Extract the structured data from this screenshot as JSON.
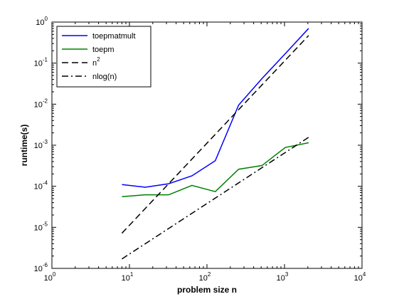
{
  "chart_data": {
    "type": "line",
    "xlabel": "problem size n",
    "ylabel": "runtime(s)",
    "xscale": "log",
    "yscale": "log",
    "xlim": [
      1,
      10000
    ],
    "ylim": [
      1e-06,
      1
    ],
    "grid": false,
    "legend_position": "top-left",
    "x_ticks": [
      {
        "value": 1,
        "base": "10",
        "exp": "0"
      },
      {
        "value": 10,
        "base": "10",
        "exp": "1"
      },
      {
        "value": 100,
        "base": "10",
        "exp": "2"
      },
      {
        "value": 1000,
        "base": "10",
        "exp": "3"
      },
      {
        "value": 10000,
        "base": "10",
        "exp": "4"
      }
    ],
    "y_ticks": [
      {
        "value": 1e-06,
        "base": "10",
        "exp": "-6"
      },
      {
        "value": 1e-05,
        "base": "10",
        "exp": "-5"
      },
      {
        "value": 0.0001,
        "base": "10",
        "exp": "-4"
      },
      {
        "value": 0.001,
        "base": "10",
        "exp": "-3"
      },
      {
        "value": 0.01,
        "base": "10",
        "exp": "-2"
      },
      {
        "value": 0.1,
        "base": "10",
        "exp": "-1"
      },
      {
        "value": 1,
        "base": "10",
        "exp": "0"
      }
    ],
    "series": [
      {
        "name": "toepmatmult",
        "color": "#0000ff",
        "style": "solid",
        "x": [
          8,
          16,
          32,
          64,
          128,
          256,
          512,
          1024,
          2048
        ],
        "y": [
          0.00011,
          9.5e-05,
          0.000115,
          0.00018,
          0.00042,
          0.0095,
          0.042,
          0.17,
          0.7
        ]
      },
      {
        "name": "toepm",
        "color": "#008000",
        "style": "solid",
        "x": [
          8,
          16,
          32,
          64,
          128,
          256,
          512,
          1024,
          2048
        ],
        "y": [
          5.6e-05,
          6.2e-05,
          6.2e-05,
          0.000105,
          7.4e-05,
          0.00026,
          0.00032,
          0.00088,
          0.00115
        ]
      },
      {
        "name": "n²",
        "legend_base": "n",
        "legend_sup": "2",
        "color": "#000000",
        "style": "dashed",
        "x": [
          8,
          2048
        ],
        "y": [
          7.2e-06,
          0.47
        ]
      },
      {
        "name": "nlog(n)",
        "color": "#000000",
        "style": "dashdot",
        "x": [
          8,
          2048
        ],
        "y": [
          1.7e-06,
          0.00156
        ]
      }
    ]
  }
}
